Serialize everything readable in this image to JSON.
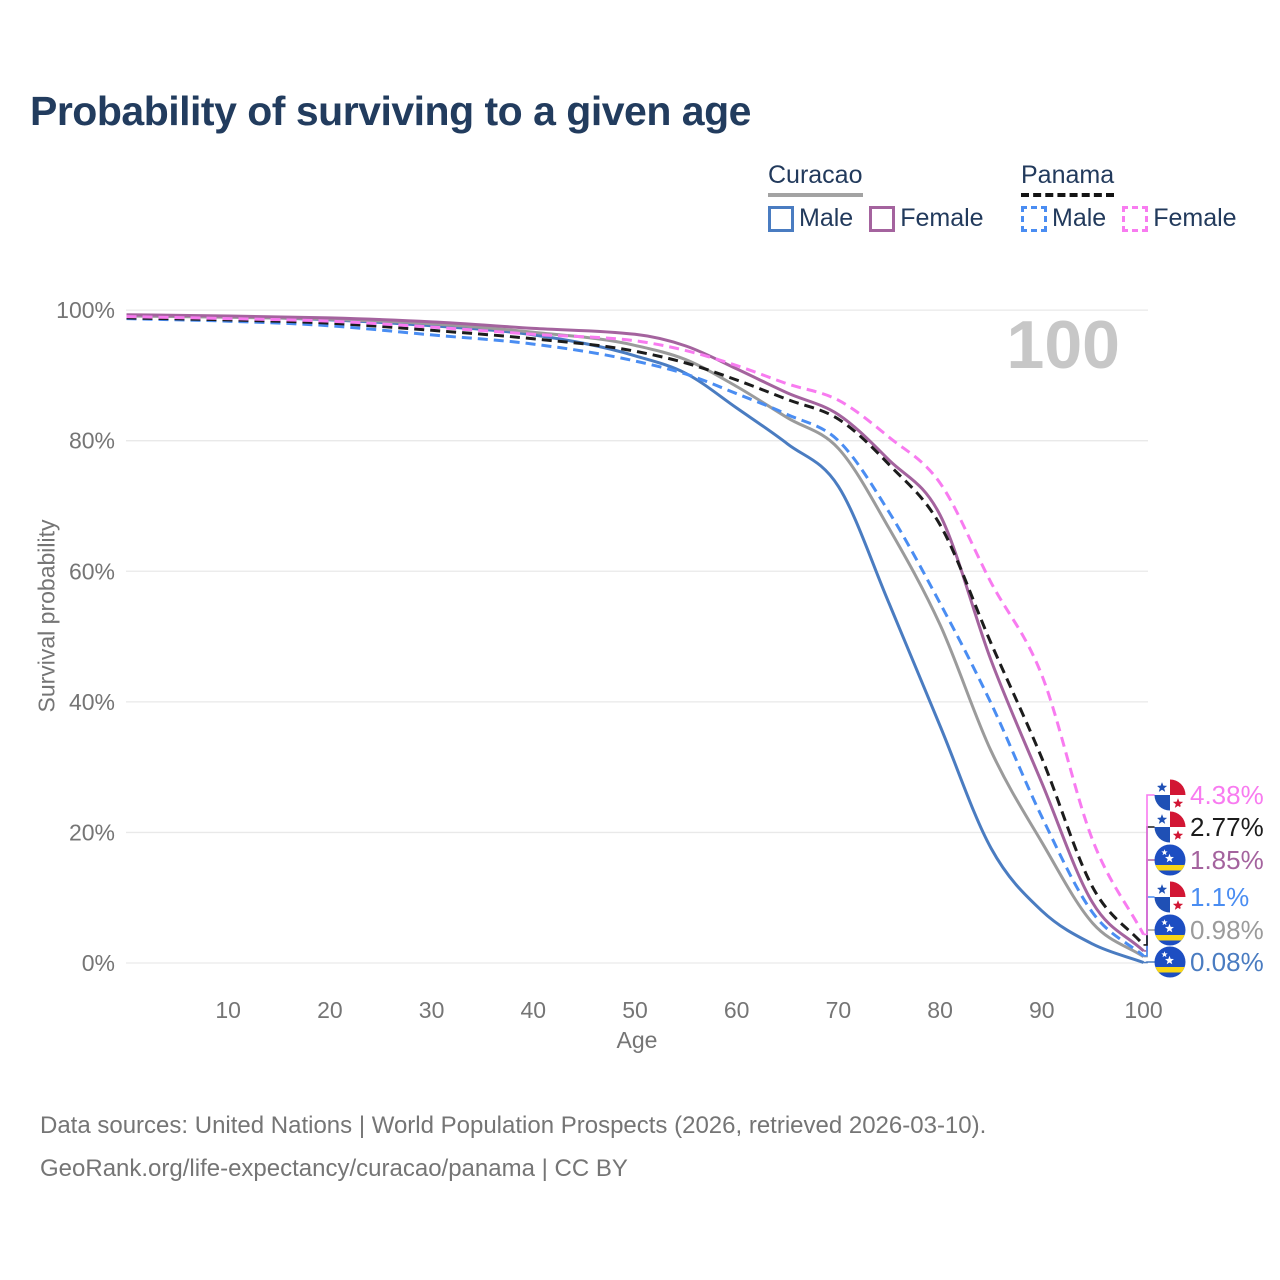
{
  "page": {
    "title": "Probability of surviving to a given age"
  },
  "legend": {
    "groups": [
      {
        "title": "Curacao",
        "line_style": "solid",
        "items": [
          {
            "label": "Male",
            "color": "#4a7cc1"
          },
          {
            "label": "Female",
            "color": "#a4639e"
          }
        ]
      },
      {
        "title": "Panama",
        "line_style": "dashed",
        "items": [
          {
            "label": "Male",
            "color": "#4a8df2"
          },
          {
            "label": "Female",
            "color": "#f87bf0"
          }
        ]
      }
    ]
  },
  "chart_data": {
    "type": "line",
    "title": "Probability of surviving to a given age",
    "xlabel": "Age",
    "ylabel": "Survival probability",
    "xlim": [
      0,
      100
    ],
    "ylim": [
      0,
      100
    ],
    "x_ticks": [
      10,
      20,
      30,
      40,
      50,
      60,
      70,
      80,
      90,
      100
    ],
    "y_ticks": [
      0,
      20,
      40,
      60,
      80,
      100
    ],
    "y_tick_labels": [
      "0%",
      "20%",
      "40%",
      "60%",
      "80%",
      "100%"
    ],
    "grid": "horizontal",
    "legend_position": "top-right",
    "watermark": "100",
    "ages": [
      0,
      10,
      20,
      30,
      40,
      50,
      55,
      60,
      65,
      70,
      75,
      80,
      85,
      90,
      95,
      100
    ],
    "series": [
      {
        "id": "curacao-male",
        "name": "Curacao Male",
        "color": "#4a7cc1",
        "dashed": false,
        "flag": "curacao",
        "label_slot": 5,
        "end_label": "0.08%",
        "values": [
          99.2,
          99.0,
          98.5,
          97.6,
          96.2,
          93.0,
          90.3,
          85.0,
          79.5,
          73.0,
          55.0,
          36.3,
          17.6,
          8.0,
          2.9,
          0.08
        ]
      },
      {
        "id": "curacao-all",
        "name": "Curacao",
        "color": "#9b9b9b",
        "dashed": false,
        "flag": "curacao",
        "label_slot": 4,
        "end_label": "0.98%",
        "values": [
          99.1,
          98.9,
          98.6,
          97.9,
          96.6,
          94.6,
          92.4,
          88.3,
          83.5,
          78.8,
          66.5,
          51.8,
          32.5,
          18.5,
          6.1,
          0.98
        ]
      },
      {
        "id": "curacao-female",
        "name": "Curacao Female",
        "color": "#a4639e",
        "dashed": false,
        "flag": "curacao",
        "label_slot": 2,
        "end_label": "1.85%",
        "values": [
          99.3,
          99.1,
          98.8,
          98.2,
          97.2,
          96.3,
          94.5,
          91.0,
          87.3,
          84.0,
          77.0,
          68.6,
          46.4,
          27.6,
          9.2,
          1.85
        ]
      },
      {
        "id": "panama-male",
        "name": "Panama Male",
        "color": "#4a8df2",
        "dashed": true,
        "flag": "panama",
        "label_slot": 3,
        "end_label": "1.1%",
        "values": [
          98.7,
          98.3,
          97.6,
          96.2,
          94.8,
          92.2,
          90.2,
          87.2,
          84.0,
          80.0,
          69.0,
          55.1,
          39.8,
          22.4,
          7.7,
          1.1
        ]
      },
      {
        "id": "panama-all",
        "name": "Panama",
        "color": "#1c1c1c",
        "dashed": true,
        "flag": "panama",
        "label_slot": 1,
        "end_label": "2.77%",
        "values": [
          98.8,
          98.5,
          98.0,
          96.9,
          95.6,
          93.7,
          91.9,
          89.3,
          86.3,
          83.3,
          76.3,
          67.1,
          49.0,
          31.4,
          11.6,
          2.77
        ]
      },
      {
        "id": "panama-female",
        "name": "Panama Female",
        "color": "#f87bf0",
        "dashed": true,
        "flag": "panama",
        "label_slot": 0,
        "end_label": "4.38%",
        "values": [
          99.0,
          98.7,
          98.3,
          97.4,
          96.3,
          95.3,
          93.8,
          91.5,
          88.7,
          86.2,
          80.5,
          73.5,
          58.3,
          44.1,
          18.8,
          4.38
        ]
      }
    ],
    "flag_colors": {
      "panama_red": "#d21634",
      "panama_blue": "#1f50b5",
      "curacao_blue": "#1d4ec2",
      "curacao_yellow": "#f9d616",
      "curacao_star": "#ffffff"
    }
  },
  "footer": {
    "line1": "Data sources: United Nations | World Population Prospects (2026, retrieved 2026-03-10).",
    "line2": "GeoRank.org/life-expectancy/curacao/panama | CC BY"
  }
}
